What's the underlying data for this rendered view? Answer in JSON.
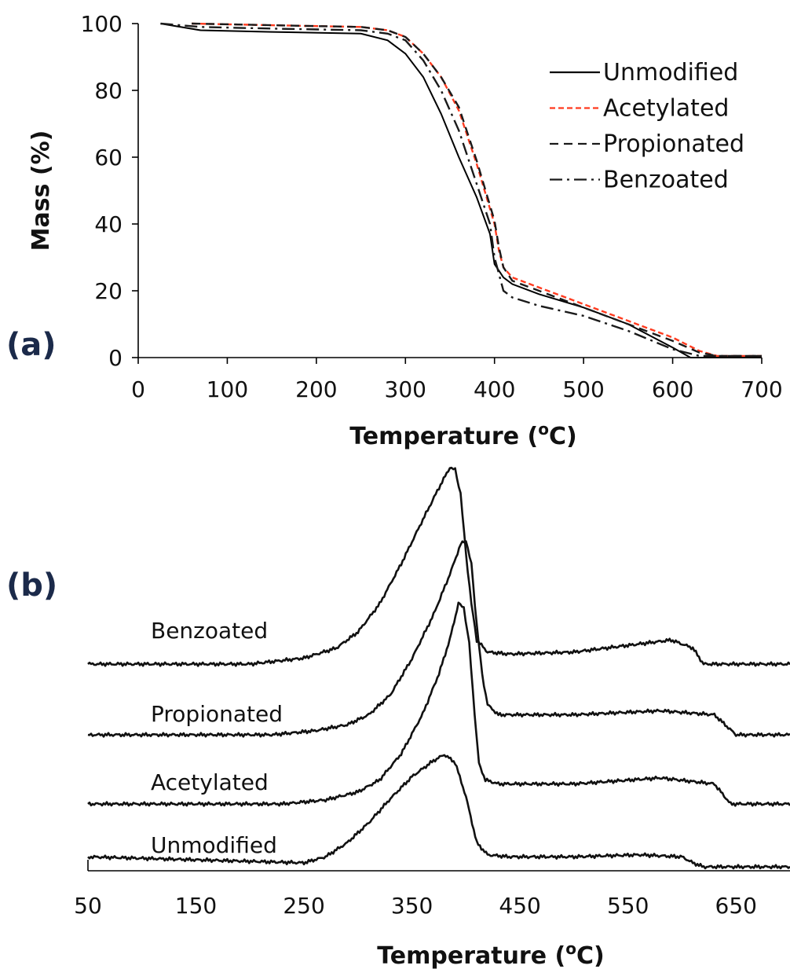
{
  "chart_data": [
    {
      "panel_label": "(a)",
      "type": "line",
      "xlabel": "Temperature (°C)",
      "ylabel": "Mass (%)",
      "xlim": [
        0,
        700
      ],
      "ylim": [
        0,
        100
      ],
      "xticks": [
        "0",
        "100",
        "200",
        "300",
        "400",
        "500",
        "600",
        "700"
      ],
      "yticks": [
        "0",
        "20",
        "40",
        "60",
        "80",
        "100"
      ],
      "grid": false,
      "legend_position": "top-right",
      "series": [
        {
          "name": "Unmodified",
          "color": "#000000",
          "dash": "solid",
          "x": [
            25,
            70,
            150,
            250,
            280,
            300,
            320,
            340,
            360,
            380,
            395,
            400,
            410,
            420,
            450,
            500,
            550,
            600,
            620,
            650,
            700
          ],
          "y": [
            100,
            98,
            97.5,
            97,
            95,
            91,
            84,
            73,
            60,
            48,
            37,
            28,
            24,
            22,
            19,
            15,
            10,
            3,
            0,
            0,
            0
          ]
        },
        {
          "name": "Acetylated",
          "color": "#ff3b1f",
          "dash": "short-dash",
          "x": [
            60,
            150,
            250,
            280,
            300,
            320,
            340,
            360,
            380,
            400,
            405,
            410,
            420,
            450,
            500,
            550,
            600,
            630,
            650,
            700
          ],
          "y": [
            100,
            99.5,
            99,
            98,
            96,
            91,
            84,
            74,
            58,
            40,
            32,
            27,
            24,
            21,
            16,
            11,
            6,
            2,
            0.5,
            0.5
          ]
        },
        {
          "name": "Propionated",
          "color": "#1a1a1a",
          "dash": "dash",
          "x": [
            60,
            150,
            250,
            280,
            300,
            320,
            340,
            360,
            380,
            400,
            405,
            410,
            420,
            450,
            500,
            550,
            600,
            630,
            650,
            700
          ],
          "y": [
            100,
            99.5,
            99,
            98,
            96,
            91,
            84,
            75,
            59,
            41,
            33,
            27,
            23,
            20,
            15,
            10,
            5,
            1.5,
            0.5,
            0.5
          ]
        },
        {
          "name": "Benzoated",
          "color": "#1a1a1a",
          "dash": "dash-dot",
          "x": [
            25,
            70,
            150,
            250,
            280,
            300,
            320,
            340,
            360,
            380,
            395,
            400,
            405,
            410,
            420,
            450,
            500,
            550,
            600,
            630,
            700
          ],
          "y": [
            100,
            99,
            98.5,
            98,
            97,
            95,
            89,
            80,
            68,
            52,
            40,
            30,
            25,
            20,
            18,
            15.5,
            12.5,
            8,
            2.5,
            0.5,
            0.5
          ]
        }
      ]
    },
    {
      "panel_label": "(b)",
      "type": "line",
      "xlabel": "Temperature (°C)",
      "ylabel": "",
      "xlim": [
        50,
        700
      ],
      "xticks": [
        "50",
        "150",
        "250",
        "350",
        "450",
        "550",
        "650"
      ],
      "grid": false,
      "series": [
        {
          "name": "Benzoated",
          "offset": 3,
          "x": [
            50,
            200,
            250,
            280,
            300,
            320,
            340,
            360,
            375,
            385,
            390,
            395,
            400,
            405,
            410,
            420,
            440,
            500,
            560,
            590,
            610,
            620,
            700
          ],
          "y": [
            0,
            0,
            0.03,
            0.08,
            0.16,
            0.3,
            0.5,
            0.72,
            0.88,
            0.98,
            0.97,
            0.85,
            0.55,
            0.3,
            0.12,
            0.06,
            0.05,
            0.06,
            0.1,
            0.12,
            0.08,
            0,
            0
          ]
        },
        {
          "name": "Propionated",
          "offset": 2,
          "x": [
            50,
            220,
            260,
            290,
            310,
            330,
            350,
            370,
            385,
            395,
            400,
            405,
            410,
            415,
            420,
            430,
            500,
            580,
            630,
            650,
            700
          ],
          "y": [
            0,
            0,
            0.02,
            0.05,
            0.1,
            0.2,
            0.38,
            0.6,
            0.8,
            0.95,
            0.97,
            0.85,
            0.55,
            0.3,
            0.15,
            0.1,
            0.1,
            0.12,
            0.1,
            0,
            0
          ]
        },
        {
          "name": "Acetylated",
          "offset": 1,
          "x": [
            50,
            230,
            270,
            300,
            320,
            340,
            360,
            375,
            385,
            393,
            398,
            403,
            408,
            412,
            418,
            430,
            500,
            580,
            630,
            645,
            700
          ],
          "y": [
            0,
            0,
            0.02,
            0.06,
            0.12,
            0.25,
            0.45,
            0.65,
            0.82,
            1.0,
            0.98,
            0.8,
            0.45,
            0.2,
            0.12,
            0.1,
            0.1,
            0.13,
            0.1,
            0,
            0
          ]
        },
        {
          "name": "Unmodified",
          "offset": 0,
          "x": [
            50,
            250,
            270,
            290,
            310,
            330,
            350,
            370,
            380,
            390,
            400,
            410,
            420,
            440,
            500,
            560,
            600,
            610,
            620,
            700
          ],
          "y": [
            0.05,
            0.02,
            0.05,
            0.12,
            0.22,
            0.34,
            0.45,
            0.53,
            0.56,
            0.52,
            0.35,
            0.12,
            0.06,
            0.05,
            0.05,
            0.06,
            0.05,
            0.02,
            0,
            0
          ]
        }
      ]
    }
  ],
  "legend_labels": [
    "Unmodified",
    "Acetylated",
    "Propionated",
    "Benzoated"
  ],
  "trace_labels": [
    "Benzoated",
    "Propionated",
    "Acetylated",
    "Unmodified"
  ]
}
